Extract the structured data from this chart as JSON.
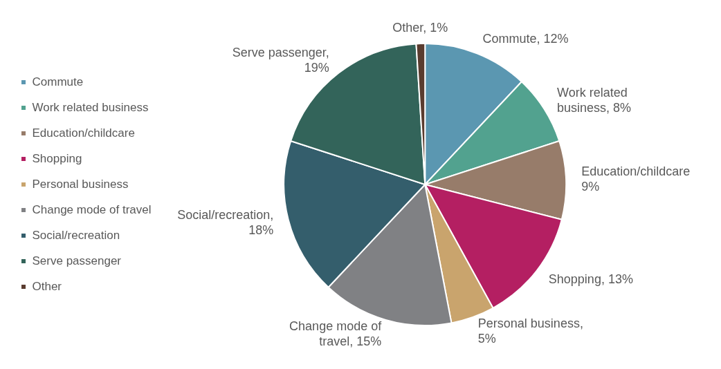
{
  "chart_data": {
    "type": "pie",
    "categories": [
      "Commute",
      "Work related business",
      "Education/childcare",
      "Shopping",
      "Personal business",
      "Change mode of travel",
      "Social/recreation",
      "Serve passenger",
      "Other"
    ],
    "values": [
      12,
      8,
      9,
      13,
      5,
      15,
      18,
      19,
      1
    ],
    "value_labels": [
      "Commute, 12%",
      "Work related business, 8%",
      "Education/childcare 9%",
      "Shopping, 13%",
      "Personal business, 5%",
      "Change mode of travel, 15%",
      "Social/recreation, 18%",
      "Serve passenger, 19%",
      "Other, 1%"
    ],
    "colors": [
      "#5b97b1",
      "#52a28f",
      "#977c6a",
      "#b41f62",
      "#c9a46d",
      "#808184",
      "#345e6c",
      "#33645a",
      "#5a3c2f"
    ],
    "legend": "left"
  }
}
